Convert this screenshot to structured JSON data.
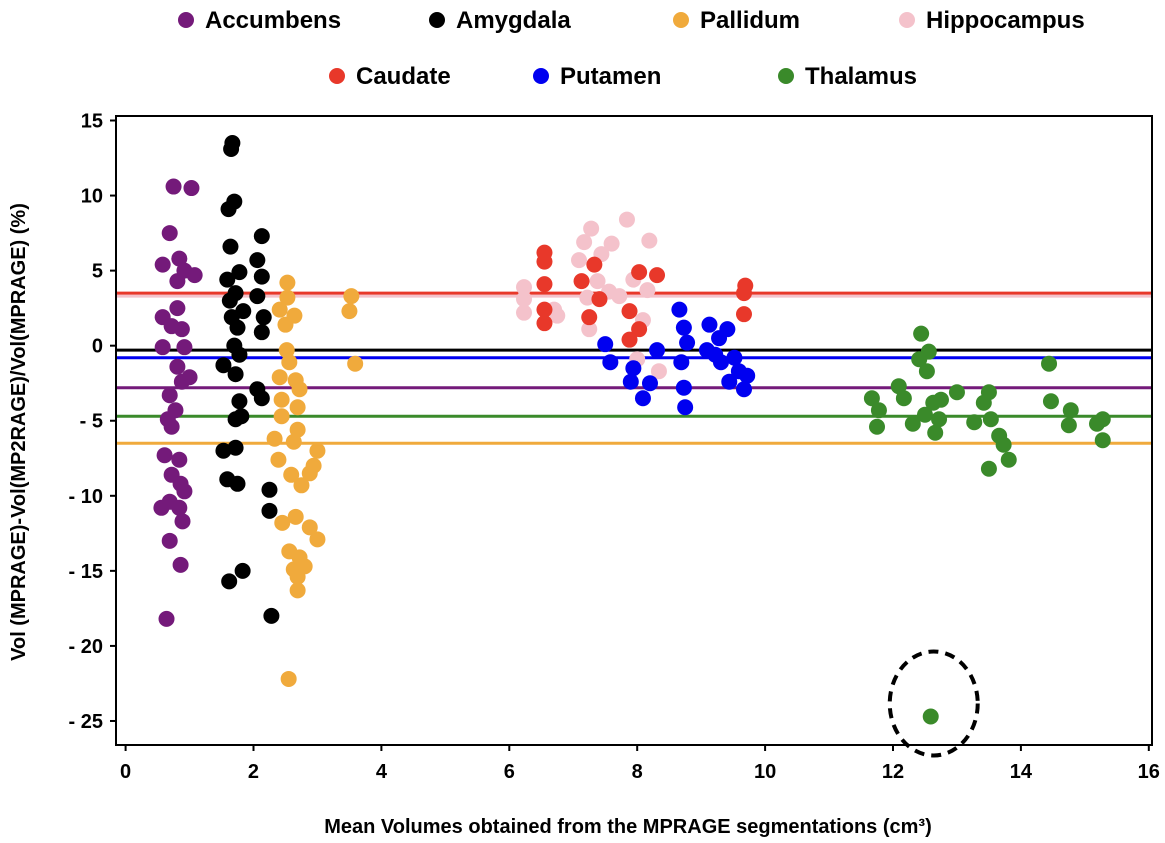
{
  "chart_data": {
    "type": "scatter",
    "xlabel": "Mean Volumes obtained from the MPRAGE segmentations (cm³)",
    "ylabel": "Vol (MPRAGE)-Vol(MP2RAGE)/Vol(MPRAGE) (%)",
    "xlim": [
      -0.15,
      16.05
    ],
    "ylim": [
      -26.6,
      15.3
    ],
    "x_ticks": [
      0,
      2,
      4,
      6,
      8,
      10,
      12,
      14,
      16
    ],
    "x_tick_labels": [
      "0",
      "2",
      "4",
      "6",
      "8",
      "10",
      "12",
      "14",
      "16"
    ],
    "y_ticks": [
      15,
      10,
      5,
      0,
      -5,
      -10,
      -15,
      -20,
      -25
    ],
    "y_tick_labels": [
      "15",
      "10",
      "5",
      "0",
      "- 5",
      "- 10",
      "- 15",
      "- 20",
      "- 25"
    ],
    "grid": false,
    "legend_placement": "top",
    "series": [
      {
        "name": "Accumbens",
        "color": "#741a7a",
        "mean": -2.8,
        "points": [
          [
            0.75,
            10.6
          ],
          [
            1.03,
            10.5
          ],
          [
            0.69,
            7.5
          ],
          [
            0.58,
            5.4
          ],
          [
            0.84,
            5.8
          ],
          [
            0.92,
            5.0
          ],
          [
            1.08,
            4.7
          ],
          [
            0.81,
            4.3
          ],
          [
            0.81,
            2.5
          ],
          [
            0.58,
            1.9
          ],
          [
            0.72,
            1.3
          ],
          [
            0.88,
            1.1
          ],
          [
            0.58,
            -0.1
          ],
          [
            0.92,
            -0.1
          ],
          [
            0.81,
            -1.4
          ],
          [
            1.0,
            -2.1
          ],
          [
            0.88,
            -2.4
          ],
          [
            0.69,
            -3.3
          ],
          [
            0.78,
            -4.3
          ],
          [
            0.66,
            -4.9
          ],
          [
            0.72,
            -5.4
          ],
          [
            0.61,
            -7.3
          ],
          [
            0.84,
            -7.6
          ],
          [
            0.72,
            -8.6
          ],
          [
            0.86,
            -9.2
          ],
          [
            0.92,
            -9.7
          ],
          [
            0.69,
            -10.4
          ],
          [
            0.56,
            -10.8
          ],
          [
            0.84,
            -10.8
          ],
          [
            0.89,
            -11.7
          ],
          [
            0.69,
            -13.0
          ],
          [
            0.86,
            -14.6
          ],
          [
            0.64,
            -18.2
          ]
        ]
      },
      {
        "name": "Amygdala",
        "color": "#000000",
        "mean": -0.3,
        "points": [
          [
            1.67,
            13.5
          ],
          [
            1.65,
            13.1
          ],
          [
            1.61,
            9.1
          ],
          [
            1.7,
            9.6
          ],
          [
            2.13,
            7.3
          ],
          [
            1.64,
            6.6
          ],
          [
            2.06,
            5.7
          ],
          [
            1.78,
            4.9
          ],
          [
            1.59,
            4.4
          ],
          [
            2.13,
            4.6
          ],
          [
            1.72,
            3.5
          ],
          [
            1.63,
            3.0
          ],
          [
            2.06,
            3.3
          ],
          [
            1.84,
            2.3
          ],
          [
            1.66,
            1.9
          ],
          [
            2.16,
            1.9
          ],
          [
            2.13,
            0.9
          ],
          [
            1.75,
            1.2
          ],
          [
            1.7,
            0.0
          ],
          [
            1.78,
            -0.6
          ],
          [
            1.53,
            -1.3
          ],
          [
            1.72,
            -1.9
          ],
          [
            2.06,
            -2.9
          ],
          [
            2.13,
            -3.5
          ],
          [
            1.78,
            -3.7
          ],
          [
            1.81,
            -4.7
          ],
          [
            1.72,
            -4.9
          ],
          [
            1.53,
            -7.0
          ],
          [
            1.72,
            -6.8
          ],
          [
            1.59,
            -8.9
          ],
          [
            1.75,
            -9.2
          ],
          [
            2.25,
            -9.6
          ],
          [
            2.25,
            -11.0
          ],
          [
            1.62,
            -15.7
          ],
          [
            1.83,
            -15.0
          ],
          [
            2.28,
            -18.0
          ]
        ]
      },
      {
        "name": "Pallidum",
        "color": "#f0aa3c",
        "mean": -6.5,
        "points": [
          [
            2.53,
            4.2
          ],
          [
            2.53,
            3.2
          ],
          [
            2.41,
            2.4
          ],
          [
            2.64,
            2.0
          ],
          [
            2.5,
            1.4
          ],
          [
            2.52,
            -0.3
          ],
          [
            2.56,
            -1.1
          ],
          [
            2.41,
            -2.1
          ],
          [
            2.66,
            -2.3
          ],
          [
            2.72,
            -2.9
          ],
          [
            2.44,
            -3.6
          ],
          [
            2.44,
            -4.7
          ],
          [
            2.69,
            -4.1
          ],
          [
            2.69,
            -5.6
          ],
          [
            2.63,
            -6.4
          ],
          [
            2.33,
            -6.2
          ],
          [
            2.39,
            -7.6
          ],
          [
            3.0,
            -7.0
          ],
          [
            2.94,
            -8.0
          ],
          [
            2.59,
            -8.6
          ],
          [
            2.88,
            -8.5
          ],
          [
            2.75,
            -9.3
          ],
          [
            2.45,
            -11.8
          ],
          [
            2.66,
            -11.4
          ],
          [
            2.88,
            -12.1
          ],
          [
            3.0,
            -12.9
          ],
          [
            2.56,
            -13.7
          ],
          [
            2.72,
            -14.1
          ],
          [
            2.63,
            -14.9
          ],
          [
            2.8,
            -14.7
          ],
          [
            2.69,
            -15.4
          ],
          [
            2.69,
            -16.3
          ],
          [
            2.55,
            -22.2
          ],
          [
            3.53,
            3.3
          ],
          [
            3.5,
            2.3
          ],
          [
            3.59,
            -1.2
          ]
        ]
      },
      {
        "name": "Hippocampus",
        "color": "#f4c2cb",
        "mean": 3.3,
        "points": [
          [
            6.23,
            3.9
          ],
          [
            6.23,
            3.1
          ],
          [
            6.23,
            2.2
          ],
          [
            6.7,
            2.4
          ],
          [
            6.75,
            2.0
          ],
          [
            7.17,
            6.9
          ],
          [
            7.28,
            7.8
          ],
          [
            7.09,
            5.7
          ],
          [
            7.44,
            6.1
          ],
          [
            7.6,
            6.8
          ],
          [
            7.84,
            8.4
          ],
          [
            7.94,
            4.4
          ],
          [
            7.38,
            4.3
          ],
          [
            7.56,
            3.6
          ],
          [
            7.22,
            3.2
          ],
          [
            7.72,
            3.3
          ],
          [
            8.19,
            7.0
          ],
          [
            8.16,
            3.7
          ],
          [
            8.0,
            -0.9
          ],
          [
            8.34,
            -1.7
          ],
          [
            8.09,
            1.7
          ],
          [
            7.25,
            1.1
          ]
        ]
      },
      {
        "name": "Caudate",
        "color": "#e8382a",
        "mean": 3.5,
        "points": [
          [
            6.55,
            6.2
          ],
          [
            6.55,
            5.6
          ],
          [
            6.55,
            4.1
          ],
          [
            6.55,
            2.4
          ],
          [
            6.55,
            1.5
          ],
          [
            7.33,
            5.4
          ],
          [
            7.13,
            4.3
          ],
          [
            7.41,
            3.1
          ],
          [
            7.25,
            1.9
          ],
          [
            8.03,
            4.9
          ],
          [
            8.31,
            4.7
          ],
          [
            7.88,
            2.3
          ],
          [
            8.03,
            1.1
          ],
          [
            7.88,
            0.4
          ],
          [
            9.69,
            4.0
          ],
          [
            9.67,
            3.5
          ],
          [
            9.67,
            2.1
          ]
        ]
      },
      {
        "name": "Putamen",
        "color": "#0000f0",
        "mean": -0.8,
        "points": [
          [
            7.5,
            0.1
          ],
          [
            7.58,
            -1.1
          ],
          [
            7.94,
            -1.5
          ],
          [
            7.9,
            -2.4
          ],
          [
            8.09,
            -3.5
          ],
          [
            8.2,
            -2.5
          ],
          [
            8.31,
            -0.3
          ],
          [
            8.66,
            2.4
          ],
          [
            8.73,
            1.2
          ],
          [
            8.78,
            0.2
          ],
          [
            8.69,
            -1.1
          ],
          [
            8.73,
            -2.8
          ],
          [
            8.75,
            -4.1
          ],
          [
            9.13,
            1.4
          ],
          [
            9.28,
            0.5
          ],
          [
            9.41,
            1.1
          ],
          [
            9.22,
            -0.6
          ],
          [
            9.31,
            -1.1
          ],
          [
            9.52,
            -0.8
          ],
          [
            9.59,
            -1.7
          ],
          [
            9.67,
            -2.9
          ],
          [
            9.44,
            -2.4
          ],
          [
            9.72,
            -2.0
          ],
          [
            9.09,
            -0.3
          ]
        ]
      },
      {
        "name": "Thalamus",
        "color": "#3a8a2a",
        "mean": -4.7,
        "points": [
          [
            12.44,
            0.8
          ],
          [
            12.56,
            -0.4
          ],
          [
            12.53,
            -1.7
          ],
          [
            12.41,
            -0.9
          ],
          [
            11.67,
            -3.5
          ],
          [
            11.78,
            -4.3
          ],
          [
            11.75,
            -5.4
          ],
          [
            12.09,
            -2.7
          ],
          [
            12.17,
            -3.5
          ],
          [
            12.31,
            -5.2
          ],
          [
            12.5,
            -4.6
          ],
          [
            12.63,
            -3.8
          ],
          [
            12.75,
            -3.6
          ],
          [
            12.72,
            -4.9
          ],
          [
            12.66,
            -5.8
          ],
          [
            13.0,
            -3.1
          ],
          [
            13.27,
            -5.1
          ],
          [
            13.42,
            -3.8
          ],
          [
            13.5,
            -3.1
          ],
          [
            13.53,
            -4.9
          ],
          [
            13.5,
            -8.2
          ],
          [
            13.66,
            -6.0
          ],
          [
            13.73,
            -6.6
          ],
          [
            13.81,
            -7.6
          ],
          [
            14.44,
            -1.2
          ],
          [
            14.47,
            -3.7
          ],
          [
            14.78,
            -4.3
          ],
          [
            14.75,
            -5.3
          ],
          [
            15.19,
            -5.2
          ],
          [
            15.28,
            -4.9
          ],
          [
            15.28,
            -6.3
          ],
          [
            12.59,
            -24.7
          ]
        ]
      }
    ],
    "annotation": {
      "type": "dashed-ellipse",
      "encircles": "Thalamus outlier",
      "x": 12.59,
      "y": -24.7
    }
  }
}
